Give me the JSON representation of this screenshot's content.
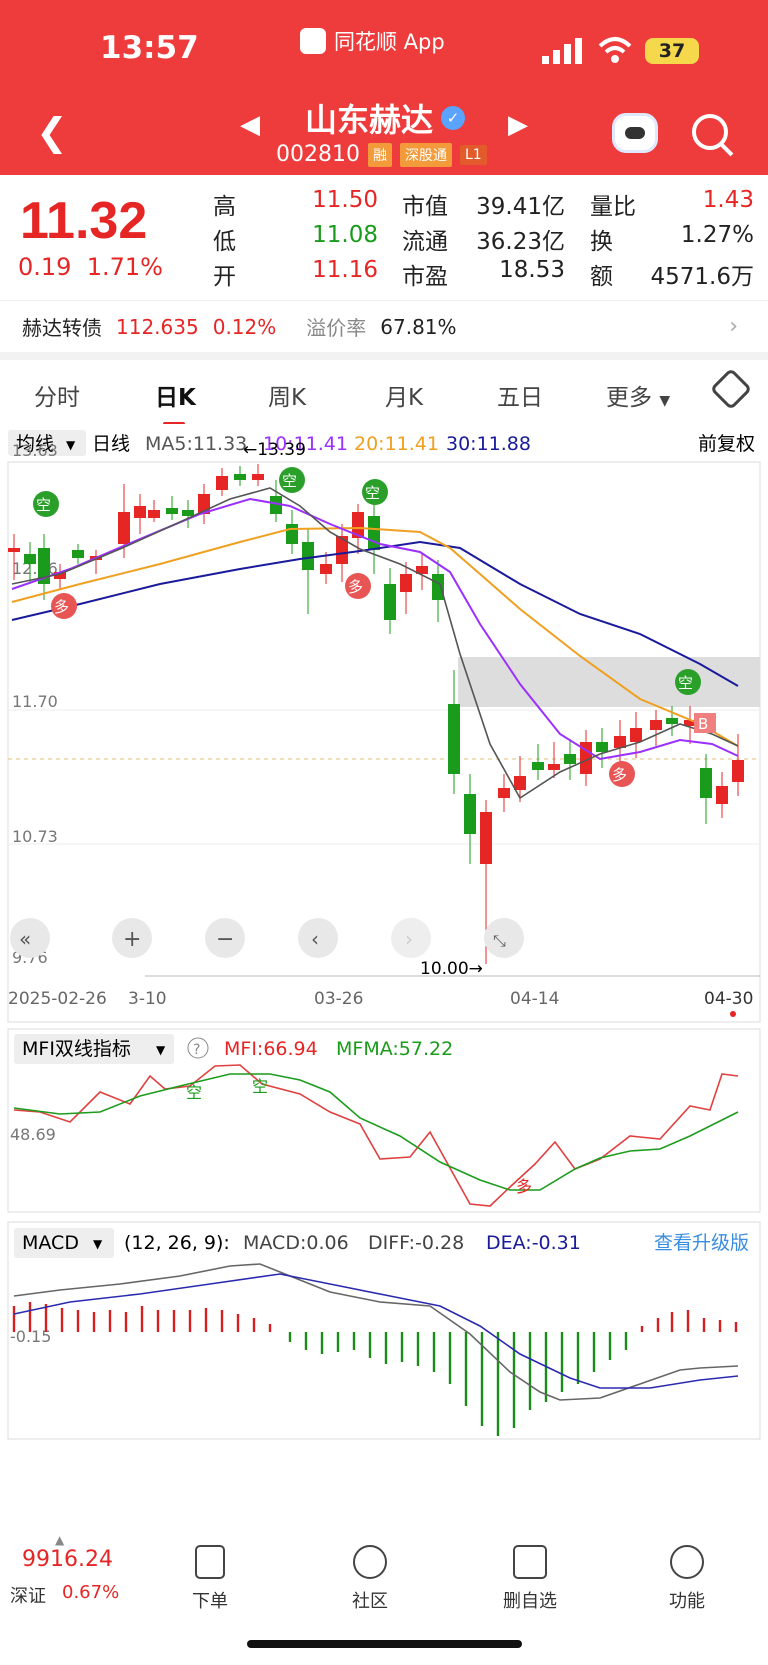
{
  "status": {
    "time": "13:57",
    "app": "同花顺 App",
    "battery": "37"
  },
  "header": {
    "name": "山东赫达",
    "code": "002810",
    "tags": [
      "融",
      "深股通",
      "L1"
    ]
  },
  "quote": {
    "price": "11.32",
    "change": "0.19",
    "pct": "1.71%",
    "rows": [
      {
        "l1": "高",
        "v1": "11.50",
        "l2": "市值",
        "v2": "39.41亿",
        "l3": "量比",
        "v3": "1.43"
      },
      {
        "l1": "低",
        "v1": "11.08",
        "l2": "流通",
        "v2": "36.23亿",
        "l3": "换",
        "v3": "1.27%"
      },
      {
        "l1": "开",
        "v1": "11.16",
        "l2": "市盈",
        "v2": "18.53",
        "l3": "额",
        "v3": "4571.6万"
      }
    ]
  },
  "bond": {
    "name": "赫达转债",
    "price": "112.635",
    "pct": "0.12%",
    "prem_label": "溢价率",
    "prem": "67.81%"
  },
  "tabs": [
    "分时",
    "日K",
    "周K",
    "月K",
    "五日",
    "更多"
  ],
  "kline": {
    "ma_label": "均线",
    "period": "日线",
    "ma5": "MA5:11.33",
    "ma10": "10:11.41",
    "ma20": "20:11.41",
    "ma30": "30:11.88",
    "adjust": "前复权",
    "y_ticks": [
      "13.63",
      "12.66",
      "11.70",
      "10.73",
      "9.76"
    ],
    "high_label": "←13.39",
    "low_label": "10.00→",
    "dates": [
      "2025-02-26",
      "3-10",
      "03-26",
      "04-14",
      "04-30"
    ],
    "kong": "空",
    "duo": "多",
    "b": "B"
  },
  "mfi": {
    "name": "MFI双线指标",
    "mfi": "MFI:66.94",
    "mfma": "MFMA:57.22",
    "tick": "48.69",
    "kong": "空",
    "duo": "多"
  },
  "macd": {
    "name": "MACD",
    "params": "(12, 26, 9):",
    "macd": "MACD:0.06",
    "diff": "DIFF:-0.28",
    "dea": "DEA:-0.31",
    "upgrade": "查看升级版",
    "tick": "-0.15"
  },
  "bottom": {
    "index": "9916.24",
    "index_name": "深证",
    "index_pct": "0.67%",
    "nav": [
      "下单",
      "社区",
      "删自选",
      "功能"
    ]
  },
  "colors": {
    "red": "#ee3b3b",
    "up": "#e62525",
    "down": "#1b9b1b",
    "ma10": "#9b30ff",
    "ma20": "#f0a020",
    "ma30": "#1a1a9c"
  }
}
